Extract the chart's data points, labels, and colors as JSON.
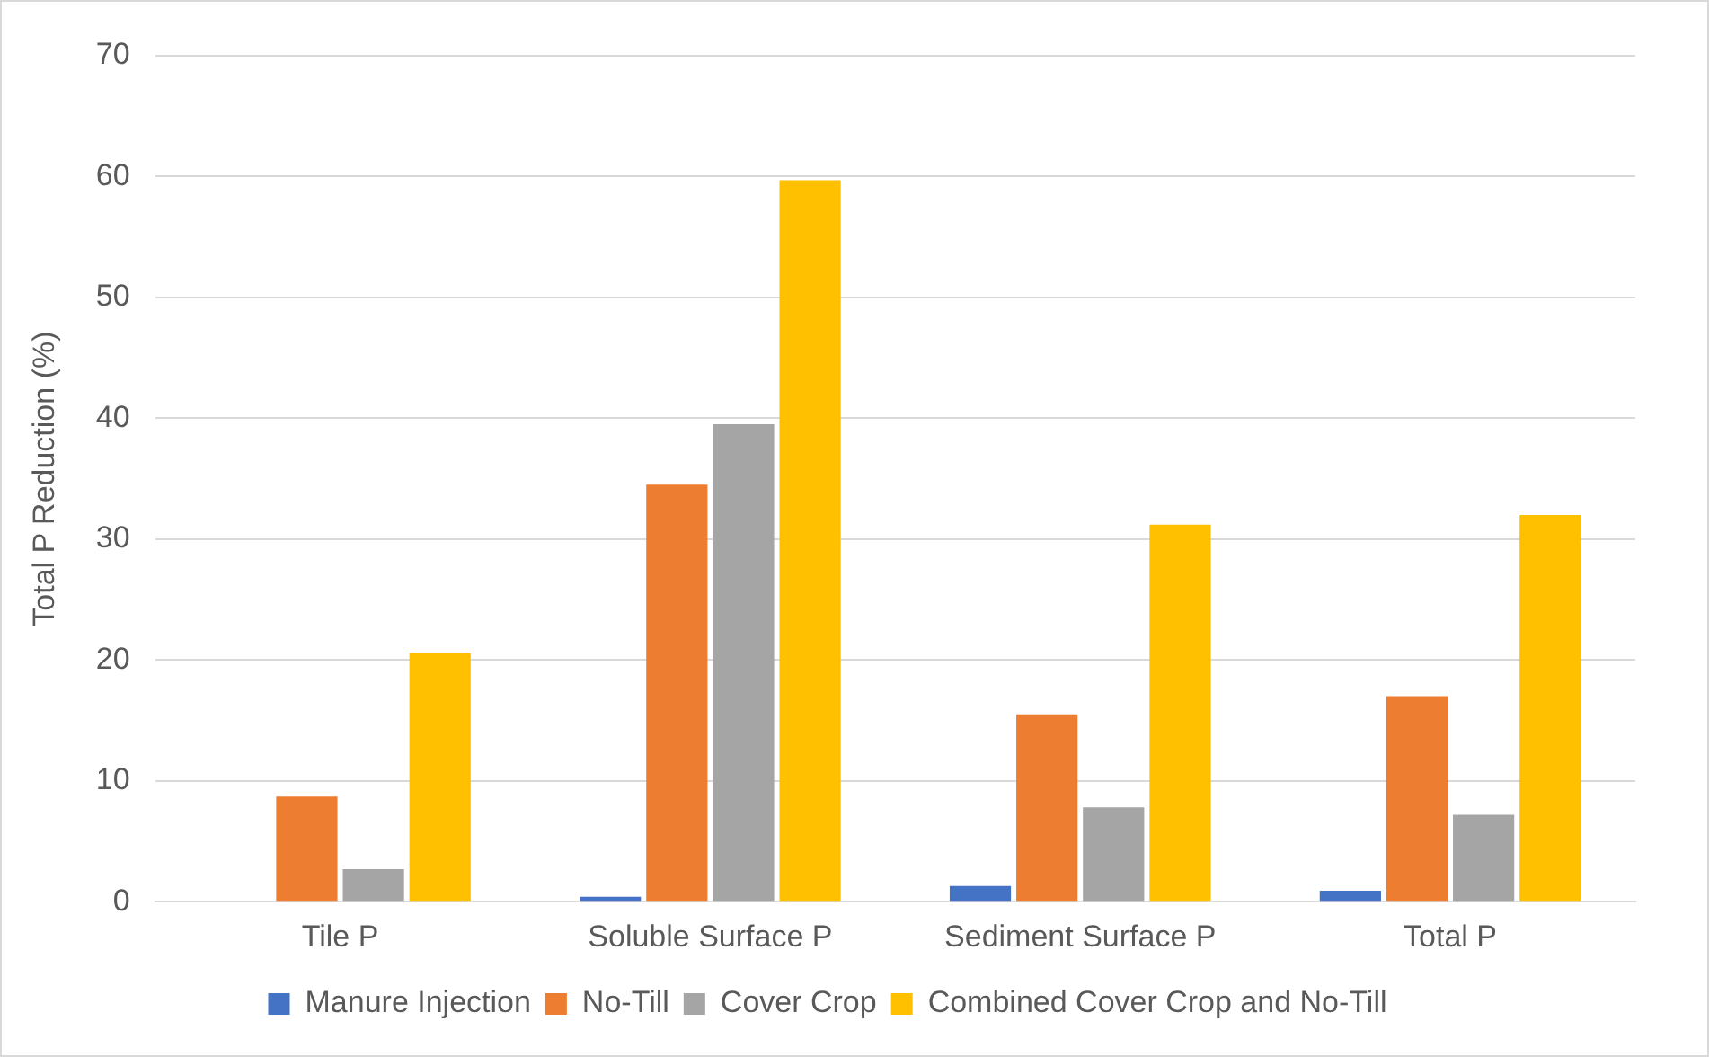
{
  "chart_data": {
    "type": "bar",
    "ylabel": "Total P Reduction (%)",
    "categories": [
      "Tile P",
      "Soluble Surface P",
      "Sediment Surface P",
      "Total P"
    ],
    "series": [
      {
        "name": "Manure Injection",
        "color": "#4472c4",
        "values": [
          0,
          0.4,
          1.3,
          0.9
        ]
      },
      {
        "name": "No-Till",
        "color": "#ed7d31",
        "values": [
          8.7,
          34.5,
          15.5,
          17
        ]
      },
      {
        "name": "Cover Crop",
        "color": "#a5a5a5",
        "values": [
          2.7,
          39.5,
          7.8,
          7.2
        ]
      },
      {
        "name": "Combined Cover Crop and No-Till",
        "color": "#ffc000",
        "values": [
          20.6,
          59.7,
          31.2,
          32
        ]
      }
    ],
    "ylim": [
      0,
      70
    ],
    "yticks": [
      0,
      10,
      20,
      30,
      40,
      50,
      60,
      70
    ],
    "grid": "y",
    "legend": "bottom"
  }
}
